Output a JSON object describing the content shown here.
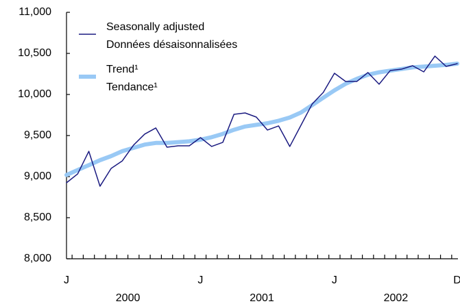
{
  "chart_data": {
    "type": "line",
    "categories": [
      "J",
      null,
      null,
      null,
      null,
      null,
      null,
      null,
      null,
      null,
      null,
      null,
      "J",
      null,
      null,
      null,
      null,
      null,
      null,
      null,
      null,
      null,
      null,
      null,
      "J",
      null,
      null,
      null,
      null,
      null,
      null,
      null,
      null,
      null,
      null,
      "D"
    ],
    "year_labels": [
      "2000",
      "2001",
      "2002"
    ],
    "series": [
      {
        "name": "Seasonally adjusted",
        "name_fr": "Données désaisonnalisées",
        "color": "#1a1a80",
        "width": 1.5,
        "values": [
          8925,
          9033,
          9308,
          8883,
          9100,
          9192,
          9383,
          9517,
          9592,
          9358,
          9375,
          9375,
          9475,
          9367,
          9417,
          9758,
          9775,
          9725,
          9567,
          9617,
          9367,
          9625,
          9883,
          10025,
          10258,
          10158,
          10158,
          10267,
          10125,
          10292,
          10308,
          10350,
          10275,
          10467,
          10342,
          10375
        ]
      },
      {
        "name": "Trend¹",
        "name_fr": "Tendance¹",
        "color": "#99c9f5",
        "width": 6,
        "values": [
          9020,
          9080,
          9140,
          9200,
          9250,
          9310,
          9350,
          9390,
          9410,
          9410,
          9420,
          9430,
          9450,
          9480,
          9520,
          9570,
          9610,
          9630,
          9650,
          9680,
          9720,
          9780,
          9870,
          9960,
          10050,
          10130,
          10190,
          10240,
          10270,
          10290,
          10310,
          10330,
          10340,
          10350,
          10360,
          10375
        ]
      }
    ],
    "ylim": [
      8000,
      11000
    ],
    "yticks": [
      {
        "value": 8000,
        "label": "8,000"
      },
      {
        "value": 8500,
        "label": "8,500"
      },
      {
        "value": 9000,
        "label": "9,000"
      },
      {
        "value": 9500,
        "label": "9,500"
      },
      {
        "value": 10000,
        "label": "10,000"
      },
      {
        "value": 10500,
        "label": "10,500"
      },
      {
        "value": 11000,
        "label": "11,000"
      }
    ],
    "grid": false
  }
}
